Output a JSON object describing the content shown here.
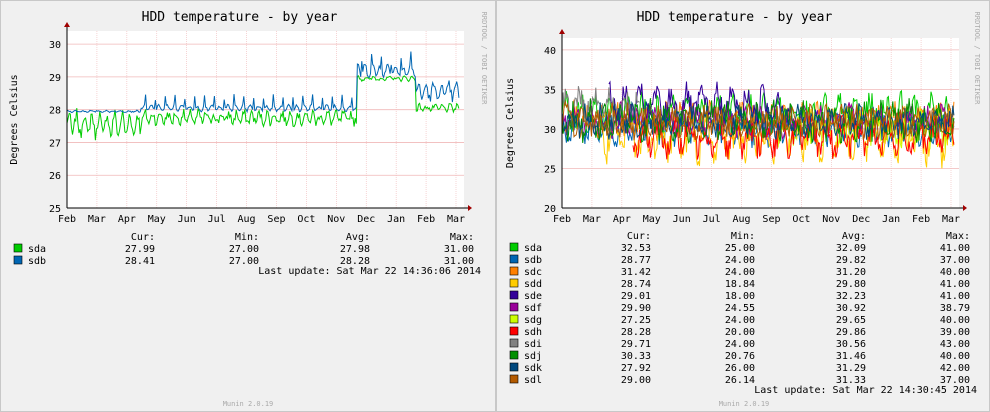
{
  "chart_data": [
    {
      "type": "line",
      "title": "HDD temperature - by year",
      "ylabel": "Degrees Celsius",
      "watermark": "RRDTOOL / TOBI OETIKER",
      "footer": "Munin 2.0.19",
      "last_update": "Last update: Sat Mar 22 14:36:06 2014",
      "x_ticks": [
        "Feb",
        "Mar",
        "Apr",
        "May",
        "Jun",
        "Jul",
        "Aug",
        "Sep",
        "Oct",
        "Nov",
        "Dec",
        "Jan",
        "Feb",
        "Mar"
      ],
      "y_ticks": [
        "25",
        "26",
        "27",
        "28",
        "29",
        "30"
      ],
      "ylim": [
        25,
        30.4
      ],
      "grid": true,
      "legend_headers": {
        "cur": "Cur:",
        "min": "Min:",
        "avg": "Avg:",
        "max": "Max:"
      },
      "series": [
        {
          "name": "sda",
          "color": "#00cc00",
          "cur": "27.99",
          "min": "27.00",
          "avg": "27.98",
          "max": "31.00",
          "segments": [
            {
              "start": 0.0,
              "end": 0.19,
              "base": 27.55,
              "wobble": 0.55,
              "jitter": 0.18
            },
            {
              "start": 0.19,
              "end": 0.74,
              "base": 27.75,
              "wobble": 0.25,
              "jitter": 0.14
            },
            {
              "start": 0.74,
              "end": 0.89,
              "base": 28.95,
              "wobble": 0.08,
              "jitter": 0.05
            },
            {
              "start": 0.89,
              "end": 1.0,
              "base": 28.05,
              "wobble": 0.12,
              "jitter": 0.08
            }
          ]
        },
        {
          "name": "sdb",
          "color": "#0066b3",
          "cur": "28.41",
          "min": "27.00",
          "avg": "28.28",
          "max": "31.00",
          "segments": [
            {
              "start": 0.0,
              "end": 0.19,
              "base": 27.95,
              "wobble": 0.03,
              "jitter": 0.02
            },
            {
              "start": 0.19,
              "end": 0.74,
              "base": 28.05,
              "wobble": 0.12,
              "spike": 0.35,
              "jitter": 0.05
            },
            {
              "start": 0.74,
              "end": 0.89,
              "base": 29.2,
              "wobble": 0.25,
              "spike": 0.4,
              "jitter": 0.1
            },
            {
              "start": 0.89,
              "end": 1.0,
              "base": 28.55,
              "wobble": 0.35,
              "jitter": 0.15
            }
          ]
        }
      ]
    },
    {
      "type": "line",
      "title": "HDD temperature - by year",
      "ylabel": "Degrees Celsius",
      "watermark": "RRDTOOL / TOBI OETIKER",
      "footer": "Munin 2.0.19",
      "last_update": "Last update: Sat Mar 22 14:30:45 2014",
      "x_ticks": [
        "Feb",
        "Mar",
        "Apr",
        "May",
        "Jun",
        "Jul",
        "Aug",
        "Sep",
        "Oct",
        "Nov",
        "Dec",
        "Jan",
        "Feb",
        "Mar"
      ],
      "y_ticks": [
        "20",
        "25",
        "30",
        "35",
        "40"
      ],
      "ylim": [
        20,
        41.5
      ],
      "grid": true,
      "legend_headers": {
        "cur": "Cur:",
        "min": "Min:",
        "avg": "Avg:",
        "max": "Max:"
      },
      "series": [
        {
          "name": "sda",
          "color": "#00cc00",
          "cur": "32.53",
          "min": "25.00",
          "avg": "32.09",
          "max": "41.00",
          "base": 32,
          "amp": 3,
          "start": 0.0,
          "end": 1.0
        },
        {
          "name": "sdb",
          "color": "#0066b3",
          "cur": "28.77",
          "min": "24.00",
          "avg": "29.82",
          "max": "37.00",
          "base": 30,
          "amp": 2.5,
          "start": 0.0,
          "end": 1.0
        },
        {
          "name": "sdc",
          "color": "#ff8000",
          "cur": "31.42",
          "min": "24.00",
          "avg": "31.20",
          "max": "40.00",
          "base": 31,
          "amp": 3,
          "start": 0.0,
          "end": 1.0
        },
        {
          "name": "sdd",
          "color": "#ffcc00",
          "cur": "28.74",
          "min": "18.84",
          "avg": "29.80",
          "max": "41.00",
          "base": 29,
          "amp": 4,
          "start": 0.1,
          "end": 1.0
        },
        {
          "name": "sde",
          "color": "#330099",
          "cur": "29.01",
          "min": "18.00",
          "avg": "32.23",
          "max": "41.00",
          "base": 33,
          "amp": 3,
          "start": 0.12,
          "end": 0.58
        },
        {
          "name": "sdf",
          "color": "#990099",
          "cur": "29.90",
          "min": "24.55",
          "avg": "30.92",
          "max": "38.79",
          "base": 31,
          "amp": 2.5,
          "start": 0.0,
          "end": 1.0
        },
        {
          "name": "sdg",
          "color": "#ccff00",
          "cur": "27.25",
          "min": "24.00",
          "avg": "29.65",
          "max": "40.00",
          "base": 30,
          "amp": 3,
          "start": 0.55,
          "end": 1.0
        },
        {
          "name": "sdh",
          "color": "#ff0000",
          "cur": "28.28",
          "min": "20.00",
          "avg": "29.86",
          "max": "39.00",
          "base": 29,
          "amp": 3,
          "start": 0.18,
          "end": 1.0
        },
        {
          "name": "sdi",
          "color": "#808080",
          "cur": "29.71",
          "min": "24.00",
          "avg": "30.56",
          "max": "43.00",
          "base": 33,
          "amp": 3,
          "start": 0.0,
          "end": 0.2
        },
        {
          "name": "sdj",
          "color": "#008f00",
          "cur": "30.33",
          "min": "20.76",
          "avg": "31.46",
          "max": "40.00",
          "base": 31,
          "amp": 3,
          "start": 0.0,
          "end": 1.0
        },
        {
          "name": "sdk",
          "color": "#00487d",
          "cur": "27.92",
          "min": "26.00",
          "avg": "31.29",
          "max": "42.00",
          "base": 31,
          "amp": 2.5,
          "start": 0.0,
          "end": 1.0
        },
        {
          "name": "sdl",
          "color": "#b35a00",
          "cur": "29.00",
          "min": "26.14",
          "avg": "31.33",
          "max": "37.00",
          "base": 31,
          "amp": 2.5,
          "start": 0.0,
          "end": 1.0
        }
      ]
    }
  ]
}
